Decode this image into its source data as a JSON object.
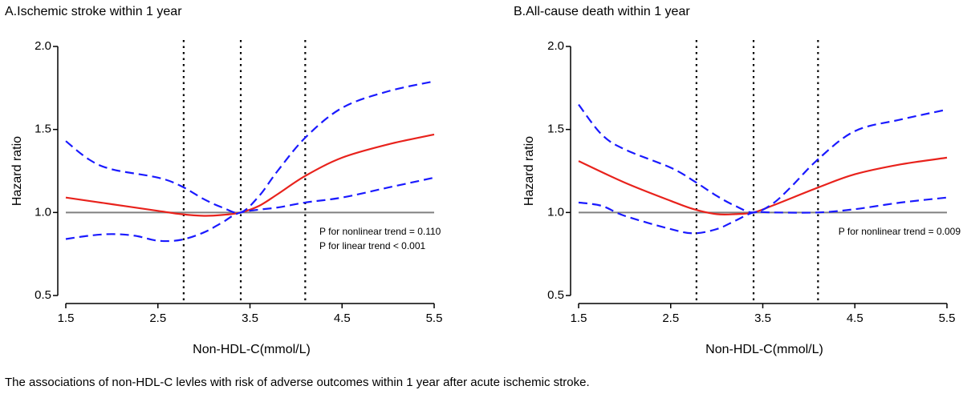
{
  "caption": "The associations of non-HDL-C levles with risk of adverse outcomes within 1 year after acute ischemic stroke.",
  "colors": {
    "estimate": "#e8221c",
    "ci": "#1a1aff",
    "reference": "#808080",
    "cutoff": "#000000",
    "axis": "#000000"
  },
  "chart_data": [
    {
      "type": "line",
      "title": "A.Ischemic stroke within 1 year",
      "xlabel": "Non-HDL-C(mmol/L)",
      "ylabel": "Hazard ratio",
      "xlim": [
        1.5,
        5.5
      ],
      "ylim": [
        0.5,
        2.0
      ],
      "xticks": [
        "1.5",
        "2.5",
        "3.5",
        "4.5",
        "5.5"
      ],
      "yticks": [
        "0.5",
        "1.0",
        "1.5",
        "2.0"
      ],
      "reference_line": 1.0,
      "cutoffs": [
        2.78,
        3.4,
        4.1
      ],
      "annotations": [
        "P for nonlinear trend = 0.110",
        "P for linear trend < 0.001"
      ],
      "series": [
        {
          "name": "Hazard ratio",
          "style": "solid",
          "x": [
            1.5,
            2.0,
            2.5,
            2.75,
            3.0,
            3.2,
            3.4,
            3.6,
            3.8,
            4.1,
            4.5,
            5.0,
            5.5
          ],
          "y": [
            1.09,
            1.05,
            1.01,
            0.99,
            0.98,
            0.985,
            1.0,
            1.04,
            1.11,
            1.22,
            1.33,
            1.41,
            1.47
          ]
        },
        {
          "name": "Upper 95% CI",
          "style": "dashed",
          "x": [
            1.5,
            1.75,
            2.0,
            2.5,
            2.75,
            3.0,
            3.2,
            3.4,
            3.6,
            3.8,
            4.1,
            4.5,
            5.0,
            5.5
          ],
          "y": [
            1.43,
            1.32,
            1.26,
            1.21,
            1.16,
            1.08,
            1.03,
            1.0,
            1.1,
            1.25,
            1.45,
            1.63,
            1.73,
            1.79
          ]
        },
        {
          "name": "Lower 95% CI",
          "style": "dashed",
          "x": [
            1.5,
            1.75,
            2.0,
            2.25,
            2.5,
            2.75,
            3.0,
            3.2,
            3.4,
            3.8,
            4.1,
            4.5,
            5.0,
            5.5
          ],
          "y": [
            0.84,
            0.86,
            0.87,
            0.86,
            0.83,
            0.835,
            0.88,
            0.94,
            1.0,
            1.03,
            1.06,
            1.09,
            1.15,
            1.21
          ]
        }
      ]
    },
    {
      "type": "line",
      "title": "B.All-cause death within 1 year",
      "xlabel": "Non-HDL-C(mmol/L)",
      "ylabel": "Hazard ratio",
      "xlim": [
        1.5,
        5.5
      ],
      "ylim": [
        0.5,
        2.0
      ],
      "xticks": [
        "1.5",
        "2.5",
        "3.5",
        "4.5",
        "5.5"
      ],
      "yticks": [
        "0.5",
        "1.0",
        "1.5",
        "2.0"
      ],
      "reference_line": 1.0,
      "cutoffs": [
        2.78,
        3.4,
        4.1
      ],
      "annotations": [
        "P for nonlinear trend = 0.009"
      ],
      "series": [
        {
          "name": "Hazard ratio",
          "style": "solid",
          "x": [
            1.5,
            2.0,
            2.5,
            2.75,
            3.0,
            3.2,
            3.4,
            3.6,
            4.1,
            4.5,
            5.0,
            5.5
          ],
          "y": [
            1.31,
            1.18,
            1.07,
            1.02,
            0.99,
            0.99,
            1.0,
            1.04,
            1.15,
            1.23,
            1.29,
            1.33
          ]
        },
        {
          "name": "Upper 95% CI",
          "style": "dashed",
          "x": [
            1.5,
            1.75,
            2.0,
            2.5,
            2.75,
            3.0,
            3.2,
            3.4,
            3.6,
            3.8,
            4.1,
            4.5,
            5.0,
            5.5
          ],
          "y": [
            1.65,
            1.47,
            1.38,
            1.27,
            1.19,
            1.1,
            1.04,
            1.0,
            1.05,
            1.15,
            1.32,
            1.49,
            1.56,
            1.62
          ]
        },
        {
          "name": "Lower 95% CI",
          "style": "dashed",
          "x": [
            1.5,
            1.75,
            2.0,
            2.5,
            2.75,
            3.0,
            3.2,
            3.4,
            3.6,
            4.1,
            4.5,
            5.0,
            5.5
          ],
          "y": [
            1.06,
            1.04,
            0.98,
            0.9,
            0.875,
            0.9,
            0.95,
            1.0,
            1.0,
            1.0,
            1.02,
            1.06,
            1.09
          ]
        }
      ]
    }
  ]
}
